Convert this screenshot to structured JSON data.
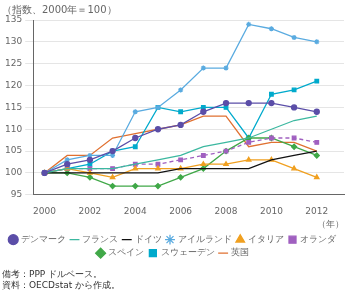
{
  "chart_data": {
    "type": "line",
    "title": "（指数、2000年＝100）",
    "xlabel": "（年）",
    "annotations": [
      "備考：PPP ドルベース。",
      "資料：OECDstat から作成。"
    ],
    "x": [
      2000,
      2001,
      2002,
      2003,
      2004,
      2005,
      2006,
      2007,
      2008,
      2009,
      2010,
      2011,
      2012
    ],
    "series": [
      {
        "name": "デンマーク",
        "color": "#5b4ea8",
        "marker": "circle",
        "line_style": "solid",
        "values": [
          100,
          102,
          103,
          105,
          108,
          110,
          111,
          114,
          116,
          116,
          116,
          115,
          114
        ]
      },
      {
        "name": "フランス",
        "color": "#3cb8a0",
        "marker": "none",
        "line_style": "solid",
        "values": [
          100,
          101,
          101,
          101,
          102,
          103,
          104,
          106,
          107,
          108,
          110,
          112,
          113
        ]
      },
      {
        "name": "ドイツ",
        "color": "#111111",
        "marker": "none",
        "line_style": "solid",
        "values": [
          100,
          100,
          100,
          100,
          100,
          100,
          101,
          101,
          101,
          101,
          103,
          104,
          105
        ]
      },
      {
        "name": "アイルランド",
        "color": "#5aabe0",
        "marker": "star",
        "line_style": "solid",
        "values": [
          100,
          103,
          104,
          104,
          114,
          115,
          119,
          124,
          124,
          134,
          133,
          131,
          130
        ]
      },
      {
        "name": "イタリア",
        "color": "#f0a020",
        "marker": "triangle",
        "line_style": "solid",
        "values": [
          100,
          101,
          100,
          99,
          101,
          101,
          101,
          102,
          102,
          103,
          103,
          101,
          99
        ]
      },
      {
        "name": "オランダ",
        "color": "#a060c0",
        "marker": "square",
        "line_style": "dashed",
        "values": [
          100,
          101,
          101,
          101,
          102,
          102,
          103,
          104,
          105,
          107,
          108,
          108,
          107
        ]
      },
      {
        "name": "スペイン",
        "color": "#40a848",
        "marker": "diamond",
        "line_style": "solid",
        "values": [
          100,
          100,
          99,
          97,
          97,
          97,
          99,
          101,
          105,
          108,
          108,
          106,
          104
        ]
      },
      {
        "name": "スウェーデン",
        "color": "#00aacc",
        "marker": "square",
        "line_style": "solid",
        "values": [
          100,
          101,
          102,
          105,
          106,
          115,
          114,
          115,
          115,
          108,
          118,
          119,
          121
        ]
      },
      {
        "name": "英国",
        "color": "#e07030",
        "marker": "none",
        "line_style": "solid",
        "values": [
          100,
          104,
          104,
          108,
          109,
          110,
          111,
          113,
          113,
          106,
          107,
          107,
          105
        ]
      }
    ],
    "xlim": [
      1999.5,
      2013.2
    ],
    "xticks": [
      2000,
      2002,
      2004,
      2006,
      2008,
      2010,
      2012
    ],
    "ylim": [
      95,
      135
    ],
    "yticks": [
      95,
      100,
      105,
      110,
      115,
      120,
      125,
      130,
      135
    ],
    "grid": "y",
    "legend": "bottom"
  }
}
